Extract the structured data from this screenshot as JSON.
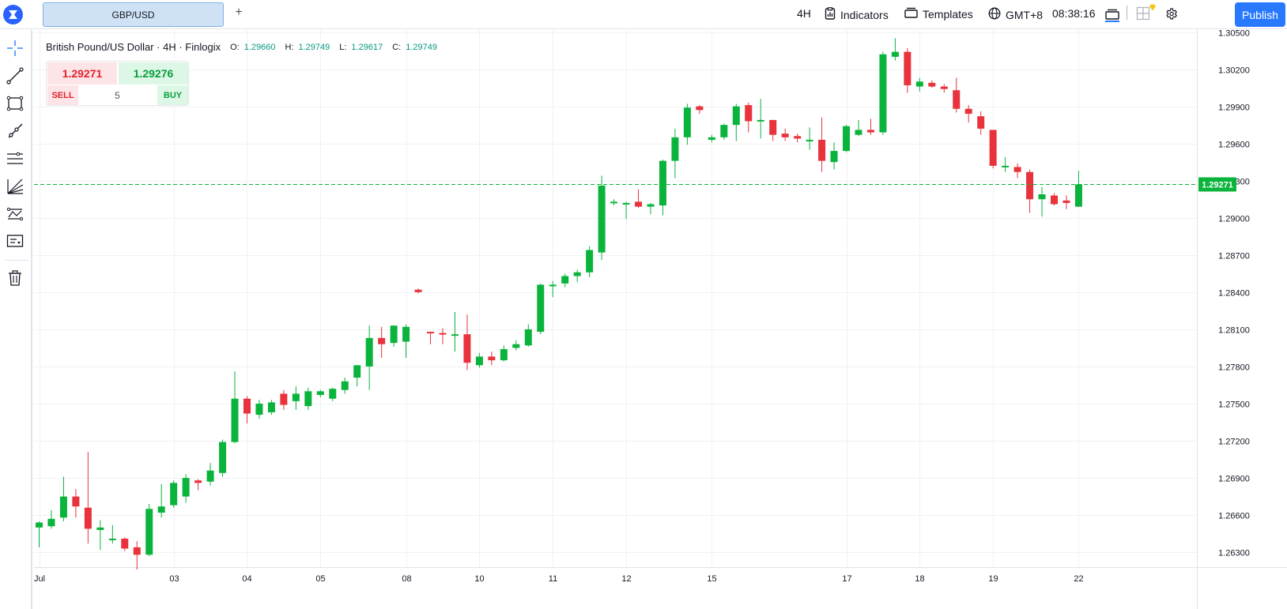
{
  "topbar": {
    "symbol_tab": "GBP/USD",
    "add_tab": "+",
    "timeframe": "4H",
    "indicators_label": "Indicators",
    "templates_label": "Templates",
    "timezone": "GMT+8",
    "clock": "08:38:16",
    "publish_label": "Publish"
  },
  "legend": {
    "title": "British Pound/US Dollar · 4H · Finlogix",
    "open_label": "O:",
    "open": "1.29660",
    "high_label": "H:",
    "high": "1.29749",
    "low_label": "L:",
    "low": "1.29617",
    "close_label": "C:",
    "close": "1.29749"
  },
  "trade": {
    "sell_price": "1.29271",
    "buy_price": "1.29276",
    "sell_label": "SELL",
    "buy_label": "BUY",
    "quantity": "5"
  },
  "toolbar_icons": [
    "crosshair-icon",
    "trend-line-icon",
    "rectangle-icon",
    "ray-icon",
    "horizontal-lines-icon",
    "fib-fan-icon",
    "pattern-icon",
    "text-note-icon",
    "trash-icon"
  ],
  "colors": {
    "up": "#0ab43c",
    "down": "#e8323c",
    "accent": "#2979ff",
    "price_line": "#0ab43c"
  },
  "chart_data": {
    "type": "candlestick",
    "symbol": "GBP/USD",
    "interval": "4H",
    "current_price": "1.29271",
    "y_ticks": [
      "1.30500",
      "1.30200",
      "1.29900",
      "1.29600",
      "1.29300",
      "1.29000",
      "1.28700",
      "1.28400",
      "1.28100",
      "1.27800",
      "1.27500",
      "1.27200",
      "1.26900",
      "1.26600",
      "1.26300"
    ],
    "x_ticks": [
      {
        "label": "Jul",
        "index": 0
      },
      {
        "label": "03",
        "index": 11
      },
      {
        "label": "04",
        "index": 17
      },
      {
        "label": "05",
        "index": 23
      },
      {
        "label": "08",
        "index": 30
      },
      {
        "label": "10",
        "index": 36
      },
      {
        "label": "11",
        "index": 42
      },
      {
        "label": "12",
        "index": 48
      },
      {
        "label": "15",
        "index": 55
      },
      {
        "label": "17",
        "index": 66
      },
      {
        "label": "18",
        "index": 72
      },
      {
        "label": "19",
        "index": 78
      },
      {
        "label": "22",
        "index": 85
      }
    ],
    "ylim": [
      1.2618,
      1.3058
    ],
    "candles": [
      [
        1.265,
        1.2655,
        1.2634,
        1.2654
      ],
      [
        1.2651,
        1.2664,
        1.2649,
        1.2657
      ],
      [
        1.2658,
        1.2691,
        1.2655,
        1.2675
      ],
      [
        1.2675,
        1.2681,
        1.2658,
        1.2667
      ],
      [
        1.2666,
        1.2711,
        1.2637,
        1.2649
      ],
      [
        1.2648,
        1.2656,
        1.2632,
        1.265
      ],
      [
        1.264,
        1.2652,
        1.2637,
        1.2641
      ],
      [
        1.2641,
        1.2642,
        1.2631,
        1.2633
      ],
      [
        1.2634,
        1.2639,
        1.2616,
        1.2628
      ],
      [
        1.2628,
        1.2669,
        1.2627,
        1.2665
      ],
      [
        1.2662,
        1.2685,
        1.2658,
        1.2667
      ],
      [
        1.2668,
        1.2688,
        1.2666,
        1.2686
      ],
      [
        1.2675,
        1.2693,
        1.267,
        1.269
      ],
      [
        1.2688,
        1.2689,
        1.268,
        1.2686
      ],
      [
        1.2687,
        1.2702,
        1.2684,
        1.2696
      ],
      [
        1.2694,
        1.2721,
        1.2691,
        1.2719
      ],
      [
        1.2719,
        1.2776,
        1.2718,
        1.2754
      ],
      [
        1.2754,
        1.2756,
        1.2734,
        1.2742
      ],
      [
        1.2741,
        1.2753,
        1.2738,
        1.275
      ],
      [
        1.2743,
        1.2753,
        1.2741,
        1.2751
      ],
      [
        1.2758,
        1.2761,
        1.2745,
        1.2749
      ],
      [
        1.2752,
        1.2764,
        1.2745,
        1.2758
      ],
      [
        1.2748,
        1.2763,
        1.2745,
        1.276
      ],
      [
        1.2757,
        1.2761,
        1.2755,
        1.276
      ],
      [
        1.2754,
        1.2763,
        1.2752,
        1.2762
      ],
      [
        1.2761,
        1.2771,
        1.2758,
        1.2768
      ],
      [
        1.2771,
        1.2781,
        1.2764,
        1.2781
      ],
      [
        1.278,
        1.2813,
        1.2761,
        1.2803
      ],
      [
        1.2803,
        1.2812,
        1.2787,
        1.2798
      ],
      [
        1.2799,
        1.2813,
        1.2796,
        1.2813
      ],
      [
        1.28,
        1.2814,
        1.2787,
        1.2812
      ],
      [
        1.2842,
        1.2843,
        1.2839,
        1.284
      ],
      [
        1.2808,
        1.2808,
        1.2798,
        1.2807
      ],
      [
        1.2807,
        1.2811,
        1.2798,
        1.2806
      ],
      [
        1.2806,
        1.2824,
        1.2792,
        1.2806
      ],
      [
        1.2806,
        1.2822,
        1.2777,
        1.2783
      ],
      [
        1.2781,
        1.2791,
        1.2779,
        1.2788
      ],
      [
        1.2788,
        1.2792,
        1.2781,
        1.2785
      ],
      [
        1.2785,
        1.2797,
        1.2784,
        1.2794
      ],
      [
        1.2795,
        1.2801,
        1.2793,
        1.2798
      ],
      [
        1.2797,
        1.2814,
        1.2796,
        1.281
      ],
      [
        1.2808,
        1.2847,
        1.2806,
        1.2846
      ],
      [
        1.2846,
        1.2849,
        1.2836,
        1.2846
      ],
      [
        1.2847,
        1.2855,
        1.2844,
        1.2853
      ],
      [
        1.2853,
        1.2858,
        1.2848,
        1.2856
      ],
      [
        1.2856,
        1.2877,
        1.2852,
        1.2874
      ],
      [
        1.2872,
        1.2934,
        1.2866,
        1.2926
      ],
      [
        1.2912,
        1.2915,
        1.291,
        1.2913
      ],
      [
        1.2911,
        1.2913,
        1.2899,
        1.2912
      ],
      [
        1.2913,
        1.2923,
        1.2908,
        1.2909
      ],
      [
        1.2909,
        1.2912,
        1.2903,
        1.2911
      ],
      [
        1.291,
        1.2947,
        1.2902,
        1.2946
      ],
      [
        1.2946,
        1.2972,
        1.2932,
        1.2965
      ],
      [
        1.2965,
        1.2992,
        1.2959,
        1.2989
      ],
      [
        1.299,
        1.2991,
        1.2984,
        1.2987
      ],
      [
        1.2963,
        1.2967,
        1.2961,
        1.2965
      ],
      [
        1.2965,
        1.2976,
        1.2963,
        1.2975
      ],
      [
        1.2975,
        1.2992,
        1.2962,
        1.299
      ],
      [
        1.2991,
        1.2993,
        1.2969,
        1.2978
      ],
      [
        1.2978,
        1.2996,
        1.2964,
        1.2979
      ],
      [
        1.2979,
        1.2979,
        1.2962,
        1.2967
      ],
      [
        1.2968,
        1.2972,
        1.2962,
        1.2965
      ],
      [
        1.2966,
        1.2968,
        1.2961,
        1.2964
      ],
      [
        1.2963,
        1.2973,
        1.2955,
        1.2963
      ],
      [
        1.2963,
        1.2981,
        1.2937,
        1.2946
      ],
      [
        1.2945,
        1.2961,
        1.2939,
        1.2954
      ],
      [
        1.2954,
        1.2975,
        1.2953,
        1.2974
      ],
      [
        1.2967,
        1.2979,
        1.2966,
        1.2971
      ],
      [
        1.2971,
        1.298,
        1.2967,
        1.2969
      ],
      [
        1.2969,
        1.3034,
        1.2967,
        1.3032
      ],
      [
        1.303,
        1.3045,
        1.3027,
        1.3034
      ],
      [
        1.3034,
        1.3037,
        1.3001,
        1.3007
      ],
      [
        1.3006,
        1.3013,
        1.3002,
        1.301
      ],
      [
        1.3009,
        1.3011,
        1.3005,
        1.3006
      ],
      [
        1.3006,
        1.3008,
        1.3001,
        1.3004
      ],
      [
        1.3003,
        1.3013,
        1.2985,
        1.2988
      ],
      [
        1.2988,
        1.2991,
        1.2977,
        1.2984
      ],
      [
        1.2982,
        1.2986,
        1.2967,
        1.2972
      ],
      [
        1.2971,
        1.2971,
        1.294,
        1.2942
      ],
      [
        1.2941,
        1.2949,
        1.2937,
        1.2942
      ],
      [
        1.2941,
        1.2944,
        1.2932,
        1.2937
      ],
      [
        1.2937,
        1.2939,
        1.2904,
        1.2915
      ],
      [
        1.2915,
        1.2925,
        1.2901,
        1.2919
      ],
      [
        1.2918,
        1.292,
        1.291,
        1.2911
      ],
      [
        1.2914,
        1.2918,
        1.2907,
        1.2912
      ],
      [
        1.2909,
        1.2938,
        1.2909,
        1.2927
      ]
    ]
  }
}
